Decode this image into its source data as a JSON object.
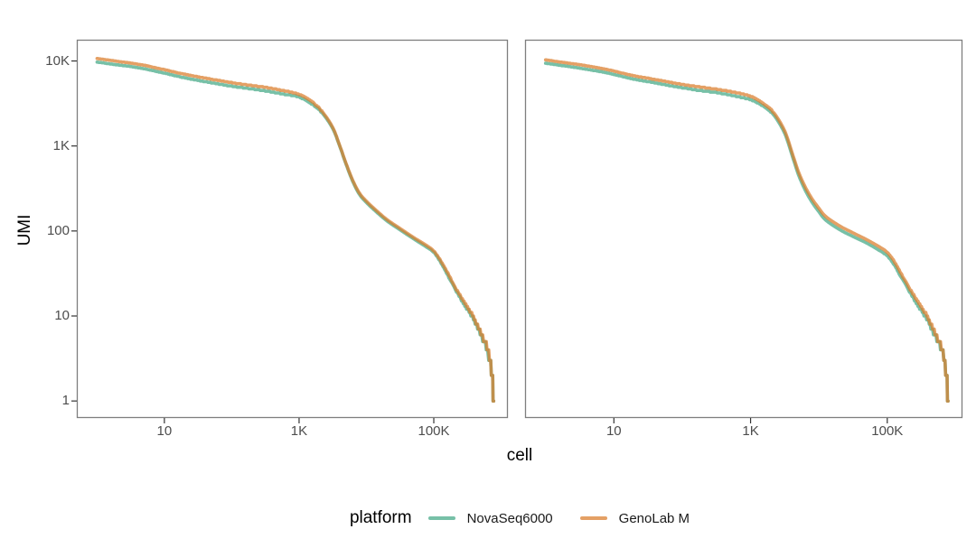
{
  "page": {
    "background": "#ffffff"
  },
  "style": {
    "panel_border_color": "#7e7e7e",
    "tick_mark_color": "#333333",
    "tick_label_color": "#4d4d4d",
    "axis_title_color": "#000000"
  },
  "chart_data": {
    "type": "line",
    "title": "",
    "xlabel": "cell",
    "ylabel": "UMI",
    "x_scale": "log10",
    "y_scale": "log10",
    "xlog_range": [
      -0.3,
      6.1
    ],
    "ylog_range": [
      -0.2,
      4.25
    ],
    "grid": false,
    "x_ticks": [
      {
        "value": 10,
        "label": "10"
      },
      {
        "value": 1000,
        "label": "1K"
      },
      {
        "value": 100000,
        "label": "100K"
      }
    ],
    "y_ticks": [
      {
        "value": 10000,
        "label": "10K"
      },
      {
        "value": 1000,
        "label": "1K"
      },
      {
        "value": 100,
        "label": "100"
      },
      {
        "value": 10,
        "label": "10"
      },
      {
        "value": 1,
        "label": "1"
      }
    ],
    "legend": {
      "title": "platform",
      "position": "bottom",
      "entries": [
        {
          "label": "NovaSeq6000",
          "color": "rgba(46,158,120,0.65)",
          "solid": "#77c0a7"
        },
        {
          "label": "GenoLab M",
          "color": "rgba(217,123,42,0.72)",
          "solid": "#e4a066"
        }
      ]
    },
    "panels": [
      {
        "name": "panel-1",
        "series": [
          {
            "name": "NovaSeq6000",
            "points": [
              [
                1,
                9700
              ],
              [
                2,
                9000
              ],
              [
                3,
                8650
              ],
              [
                5,
                8100
              ],
              [
                7,
                7650
              ],
              [
                10,
                7200
              ],
              [
                18,
                6450
              ],
              [
                32,
                5900
              ],
              [
                56,
                5450
              ],
              [
                100,
                5050
              ],
              [
                178,
                4750
              ],
              [
                316,
                4450
              ],
              [
                562,
                4100
              ],
              [
                1000,
                3750
              ],
              [
                1600,
                3050
              ],
              [
                2240,
                2400
              ],
              [
                3160,
                1600
              ],
              [
                4000,
                1000
              ],
              [
                5000,
                605
              ],
              [
                6300,
                378
              ],
              [
                7900,
                268
              ],
              [
                10000,
                216
              ],
              [
                12600,
                181
              ],
              [
                20000,
                132
              ],
              [
                31600,
                103
              ],
              [
                50000,
                81
              ],
              [
                79400,
                64
              ],
              [
                100000,
                56
              ],
              [
                126000,
                43
              ],
              [
                158000,
                31
              ],
              [
                200000,
                22
              ],
              [
                251000,
                16
              ],
              [
                316000,
                12
              ],
              [
                400000,
                8.9
              ],
              [
                501000,
                5.9
              ],
              [
                631000,
                3.9
              ],
              [
                700000,
                2.5
              ],
              [
                750000,
                1.6
              ],
              [
                776000,
                1
              ]
            ]
          },
          {
            "name": "GenoLab M",
            "points": [
              [
                1,
                10700
              ],
              [
                2,
                9900
              ],
              [
                3,
                9500
              ],
              [
                5,
                8900
              ],
              [
                7,
                8400
              ],
              [
                10,
                7900
              ],
              [
                18,
                7100
              ],
              [
                32,
                6500
              ],
              [
                56,
                6000
              ],
              [
                100,
                5550
              ],
              [
                178,
                5200
              ],
              [
                316,
                4900
              ],
              [
                562,
                4500
              ],
              [
                1000,
                4050
              ],
              [
                1600,
                3250
              ],
              [
                2240,
                2500
              ],
              [
                3160,
                1650
              ],
              [
                4000,
                1020
              ],
              [
                5000,
                620
              ],
              [
                6300,
                390
              ],
              [
                7900,
                278
              ],
              [
                10000,
                224
              ],
              [
                12600,
                188
              ],
              [
                20000,
                137
              ],
              [
                31600,
                107
              ],
              [
                50000,
                84
              ],
              [
                79400,
                67
              ],
              [
                100000,
                58
              ],
              [
                126000,
                45
              ],
              [
                158000,
                33
              ],
              [
                200000,
                23
              ],
              [
                251000,
                17
              ],
              [
                316000,
                12.6
              ],
              [
                400000,
                9.3
              ],
              [
                501000,
                6.2
              ],
              [
                631000,
                4.1
              ],
              [
                700000,
                2.6
              ],
              [
                750000,
                1.7
              ],
              [
                776000,
                1
              ]
            ]
          }
        ]
      },
      {
        "name": "panel-2",
        "series": [
          {
            "name": "NovaSeq6000",
            "points": [
              [
                1,
                9400
              ],
              [
                2,
                8700
              ],
              [
                3,
                8300
              ],
              [
                5,
                7750
              ],
              [
                7,
                7400
              ],
              [
                10,
                6950
              ],
              [
                18,
                6200
              ],
              [
                32,
                5700
              ],
              [
                56,
                5250
              ],
              [
                100,
                4850
              ],
              [
                178,
                4500
              ],
              [
                316,
                4250
              ],
              [
                562,
                3900
              ],
              [
                1000,
                3500
              ],
              [
                1600,
                2870
              ],
              [
                2240,
                2250
              ],
              [
                3160,
                1400
              ],
              [
                4000,
                800
              ],
              [
                5000,
                462
              ],
              [
                6300,
                302
              ],
              [
                7900,
                219
              ],
              [
                10000,
                168
              ],
              [
                12600,
                134
              ],
              [
                20000,
                104
              ],
              [
                31600,
                86
              ],
              [
                50000,
                72
              ],
              [
                79400,
                58
              ],
              [
                100000,
                51
              ],
              [
                126000,
                40
              ],
              [
                158000,
                29
              ],
              [
                200000,
                21
              ],
              [
                251000,
                15.5
              ],
              [
                316000,
                11.6
              ],
              [
                400000,
                8.6
              ],
              [
                501000,
                5.8
              ],
              [
                631000,
                3.9
              ],
              [
                700000,
                2.5
              ],
              [
                750000,
                1.6
              ],
              [
                776000,
                1
              ]
            ]
          },
          {
            "name": "GenoLab M",
            "points": [
              [
                1,
                10300
              ],
              [
                2,
                9500
              ],
              [
                3,
                9100
              ],
              [
                5,
                8500
              ],
              [
                7,
                8100
              ],
              [
                10,
                7600
              ],
              [
                18,
                6800
              ],
              [
                32,
                6250
              ],
              [
                56,
                5750
              ],
              [
                100,
                5300
              ],
              [
                178,
                4950
              ],
              [
                316,
                4650
              ],
              [
                562,
                4300
              ],
              [
                1000,
                3850
              ],
              [
                1600,
                3100
              ],
              [
                2240,
                2400
              ],
              [
                3160,
                1500
              ],
              [
                4000,
                860
              ],
              [
                5000,
                500
              ],
              [
                6300,
                330
              ],
              [
                7900,
                240
              ],
              [
                10000,
                185
              ],
              [
                12600,
                148
              ],
              [
                20000,
                115
              ],
              [
                31600,
                95
              ],
              [
                50000,
                79
              ],
              [
                79400,
                64
              ],
              [
                100000,
                56
              ],
              [
                126000,
                44
              ],
              [
                158000,
                32
              ],
              [
                200000,
                23
              ],
              [
                251000,
                17
              ],
              [
                316000,
                12.6
              ],
              [
                400000,
                9.3
              ],
              [
                501000,
                6.2
              ],
              [
                631000,
                4.1
              ],
              [
                700000,
                2.6
              ],
              [
                750000,
                1.7
              ],
              [
                776000,
                1
              ]
            ]
          }
        ]
      }
    ]
  }
}
